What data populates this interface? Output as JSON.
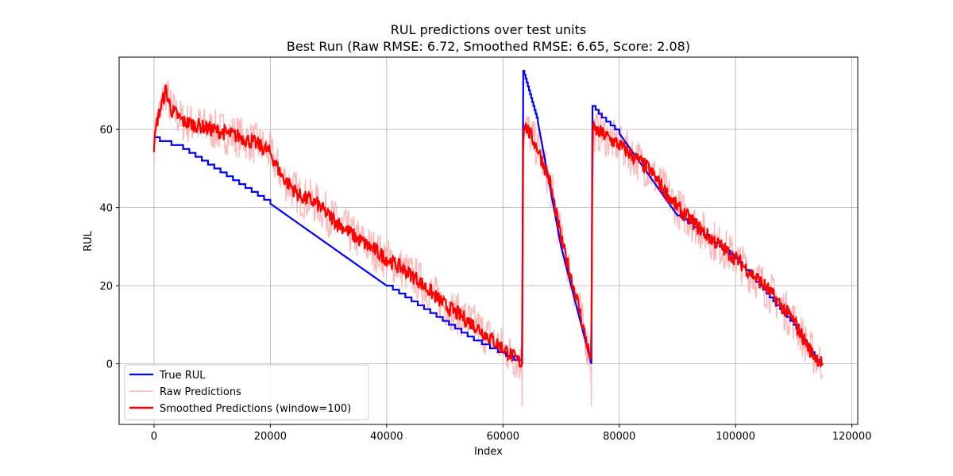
{
  "chart_data": {
    "type": "line",
    "title": "RUL predictions over test units",
    "subtitle": "Best Run (Raw RMSE: 6.72, Smoothed RMSE: 6.65, Score: 2.08)",
    "xlabel": "Index",
    "ylabel": "RUL",
    "xlim": [
      -6000,
      121000
    ],
    "ylim": [
      -15.5,
      78.5
    ],
    "xticks": [
      0,
      20000,
      40000,
      60000,
      80000,
      100000,
      120000
    ],
    "yticks": [
      0,
      20,
      40,
      60
    ],
    "grid": true,
    "legend_position": "bottom-left",
    "series": [
      {
        "name": "True RUL",
        "color": "#0000ff",
        "style": "step",
        "points": [
          [
            0,
            58
          ],
          [
            1000,
            57
          ],
          [
            5000,
            55
          ],
          [
            20000,
            41
          ],
          [
            40000,
            20
          ],
          [
            55000,
            6
          ],
          [
            63300,
            0
          ],
          [
            63500,
            75
          ],
          [
            66000,
            62
          ],
          [
            70000,
            30
          ],
          [
            75200,
            0
          ],
          [
            75400,
            66
          ],
          [
            77000,
            63
          ],
          [
            80000,
            59
          ],
          [
            90000,
            38
          ],
          [
            100000,
            27
          ],
          [
            110000,
            10
          ],
          [
            114500,
            0
          ]
        ]
      },
      {
        "name": "Raw Predictions",
        "color": "#ffb0b0",
        "style": "noisy",
        "min_spike": -11,
        "spike_positions": [
          63300,
          75200
        ]
      },
      {
        "name": "Smoothed Predictions (window=100)",
        "color": "#ff0000",
        "style": "noisy",
        "points": [
          [
            0,
            56
          ],
          [
            500,
            62
          ],
          [
            2000,
            70
          ],
          [
            3000,
            65
          ],
          [
            5000,
            62
          ],
          [
            10000,
            60
          ],
          [
            15000,
            58
          ],
          [
            18000,
            56
          ],
          [
            20000,
            54
          ],
          [
            22000,
            48
          ],
          [
            25000,
            43
          ],
          [
            28000,
            41
          ],
          [
            30000,
            38
          ],
          [
            35000,
            32
          ],
          [
            40000,
            27
          ],
          [
            45000,
            22
          ],
          [
            50000,
            15
          ],
          [
            55000,
            10
          ],
          [
            60000,
            4
          ],
          [
            62000,
            1.5
          ],
          [
            63300,
            0
          ],
          [
            63500,
            62
          ],
          [
            66000,
            55
          ],
          [
            68000,
            47
          ],
          [
            70000,
            32
          ],
          [
            73000,
            15
          ],
          [
            75200,
            0
          ],
          [
            75400,
            60
          ],
          [
            77000,
            59
          ],
          [
            80000,
            56
          ],
          [
            85000,
            50
          ],
          [
            90000,
            40
          ],
          [
            95000,
            33
          ],
          [
            100000,
            27
          ],
          [
            105000,
            20
          ],
          [
            110000,
            11
          ],
          [
            113000,
            3
          ],
          [
            115000,
            0
          ]
        ]
      }
    ]
  }
}
